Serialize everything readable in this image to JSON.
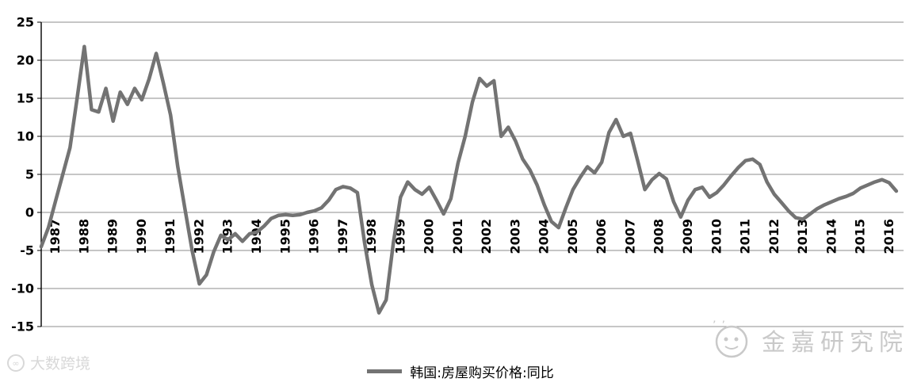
{
  "chart_data": {
    "type": "line",
    "title": "",
    "xlabel": "",
    "ylabel": "",
    "ylim": [
      -15,
      25
    ],
    "ytick_step": 5,
    "yticks": [
      25,
      20,
      15,
      10,
      5,
      0,
      -5,
      -10,
      -15
    ],
    "x_range": [
      1987,
      2017
    ],
    "x_ticks": [
      "1987",
      "1988",
      "1989",
      "1990",
      "1991",
      "1992",
      "1993",
      "1994",
      "1995",
      "1996",
      "1997",
      "1998",
      "1999",
      "2000",
      "2001",
      "2002",
      "2003",
      "2004",
      "2005",
      "2006",
      "2007",
      "2008",
      "2009",
      "2010",
      "2011",
      "2012",
      "2013",
      "2014",
      "2015",
      "2016"
    ],
    "grid": true,
    "legend_position": "bottom",
    "series": [
      {
        "name": "韩国:房屋购买价格:同比",
        "color": "#737373",
        "x_start": 1987.0,
        "x_step": 0.25,
        "values": [
          -4.5,
          -2.0,
          1.5,
          5.0,
          8.5,
          15.0,
          21.8,
          13.5,
          13.2,
          16.3,
          12.0,
          15.8,
          14.2,
          16.3,
          14.8,
          17.5,
          20.9,
          17.0,
          12.8,
          6.0,
          0.5,
          -5.0,
          -9.4,
          -8.2,
          -5.2,
          -3.0,
          -3.6,
          -2.8,
          -3.8,
          -2.8,
          -2.6,
          -1.8,
          -0.8,
          -0.4,
          -0.3,
          -0.4,
          -0.3,
          0.0,
          0.2,
          0.6,
          1.6,
          3.0,
          3.4,
          3.2,
          2.6,
          -4.0,
          -9.5,
          -13.2,
          -11.5,
          -4.0,
          2.0,
          4.0,
          3.0,
          2.4,
          3.3,
          1.6,
          -0.2,
          1.8,
          6.5,
          10.0,
          14.5,
          17.6,
          16.6,
          17.3,
          10.0,
          11.2,
          9.4,
          7.0,
          5.6,
          3.6,
          1.0,
          -1.2,
          -2.0,
          0.6,
          3.0,
          4.6,
          6.0,
          5.2,
          6.6,
          10.5,
          12.2,
          10.0,
          10.4,
          6.8,
          3.0,
          4.3,
          5.1,
          4.4,
          1.4,
          -0.6,
          1.6,
          3.0,
          3.3,
          2.0,
          2.6,
          3.6,
          4.8,
          5.9,
          6.8,
          7.0,
          6.3,
          4.0,
          2.4,
          1.3,
          0.2,
          -0.7,
          -0.9,
          -0.2,
          0.5,
          1.0,
          1.4,
          1.8,
          2.1,
          2.5,
          3.2,
          3.6,
          4.0,
          4.3,
          3.9,
          2.8
        ]
      }
    ]
  },
  "legend": {
    "label": "韩国:房屋购买价格:同比"
  },
  "watermarks": {
    "bottom_left": "大数跨境",
    "bottom_right": "金嘉研究院"
  },
  "colors": {
    "line": "#737373",
    "grid": "#8c8c8c",
    "axis": "#000000",
    "watermark_right": "#c9c9c9",
    "watermark_left": "#d8d8d8"
  }
}
